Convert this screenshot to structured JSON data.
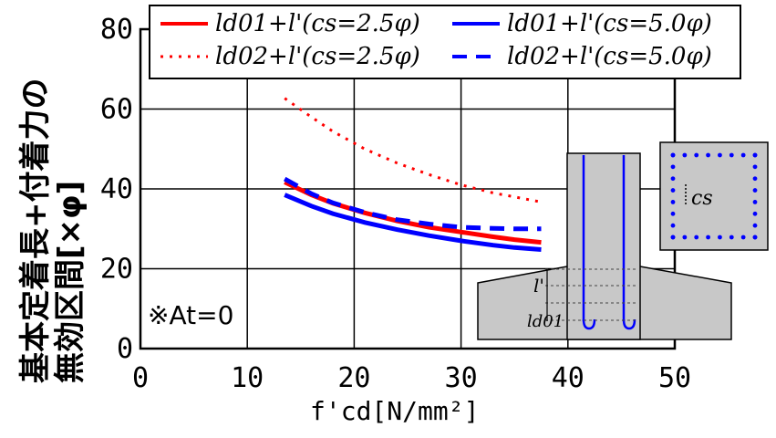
{
  "chart_data": {
    "type": "line",
    "title": "",
    "ylabel_line1": "基本定着長+付着力の",
    "ylabel_line2": "無効区間[×φ]",
    "xlabel": "f'cd[N/mm²]",
    "xlim": [
      0,
      50
    ],
    "ylim": [
      0,
      80
    ],
    "xticks": [
      "0",
      "10",
      "20",
      "30",
      "40",
      "50"
    ],
    "yticks": [
      "0",
      "20",
      "40",
      "60",
      "80"
    ],
    "grid": true,
    "legend_position": "top",
    "legend": [
      "ld01+l'(cs=2.5φ)",
      "ld02+l'(cs=2.5φ)",
      "ld01+l'(cs=5.0φ)",
      "ld02+l'(cs=5.0φ)"
    ],
    "series": [
      {
        "name": "ld01+l'(cs=2.5φ)",
        "color": "#ff0000",
        "style": "solid",
        "x": [
          13.5,
          16,
          18,
          21,
          24,
          27,
          30,
          33,
          35,
          37.5
        ],
        "y": [
          41.7,
          38.5,
          36.4,
          34,
          32,
          30.4,
          29.2,
          28,
          27.3,
          26.6
        ]
      },
      {
        "name": "ld02+l'(cs=2.5φ)",
        "color": "#ff0000",
        "style": "dotted",
        "x": [
          13.5,
          16,
          18,
          21,
          24,
          27,
          30,
          33,
          35,
          37.5
        ],
        "y": [
          62.7,
          58,
          54.4,
          50,
          46.5,
          43.6,
          41,
          39,
          38,
          36.7
        ]
      },
      {
        "name": "ld01+l'(cs=5.0φ)",
        "color": "#0000ff",
        "style": "solid",
        "x": [
          13.5,
          16,
          18,
          21,
          24,
          27,
          30,
          33,
          35,
          37.5
        ],
        "y": [
          38.5,
          35.7,
          33.8,
          31.6,
          29.8,
          28.3,
          27,
          25.9,
          25.3,
          24.8
        ]
      },
      {
        "name": "ld02+l'(cs=5.0φ)",
        "color": "#0000ff",
        "style": "dashed",
        "x": [
          13.5,
          16,
          18,
          21,
          24,
          27,
          30,
          33,
          35,
          37.5
        ],
        "y": [
          42.5,
          38.8,
          36.5,
          34.1,
          32.3,
          31.2,
          30.4,
          30.1,
          30,
          30
        ]
      }
    ],
    "annotation": "※At=0",
    "inset_labels": {
      "cs": "cs",
      "l_prime": "l'",
      "ld01": "ld01"
    }
  }
}
